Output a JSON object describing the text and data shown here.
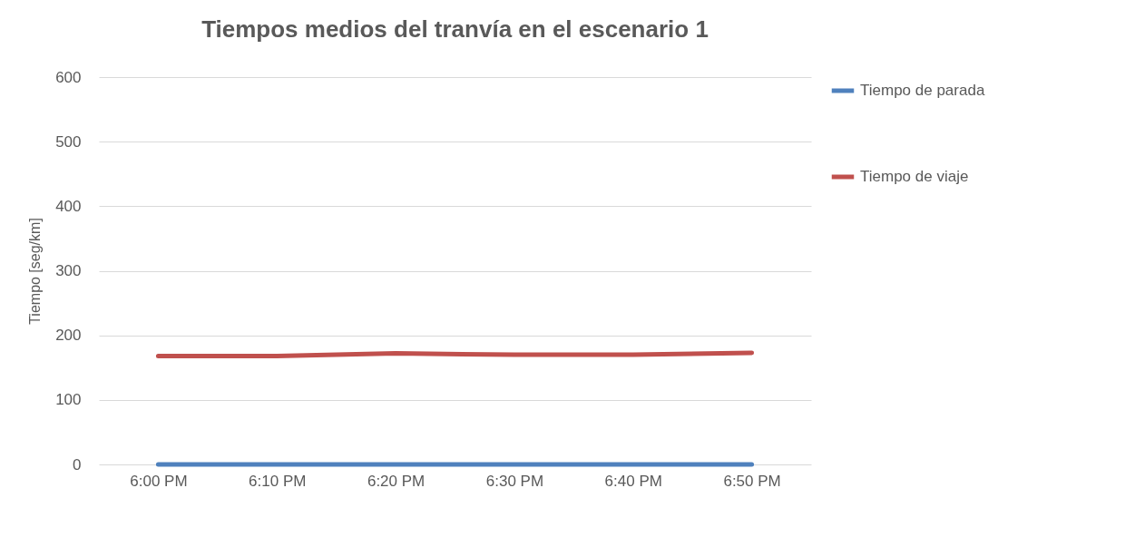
{
  "chart_data": {
    "type": "line",
    "title": "Tiempos medios del tranvía en el escenario 1",
    "ylabel": "Tiempo [seg/km]",
    "categories": [
      "6:00 PM",
      "6:10 PM",
      "6:20 PM",
      "6:30 PM",
      "6:40 PM",
      "6:50 PM"
    ],
    "series": [
      {
        "name": "Tiempo de parada",
        "color": "#4f81bd",
        "values": [
          0,
          0,
          0,
          0,
          0,
          0
        ]
      },
      {
        "name": "Tiempo de viaje",
        "color": "#c0504d",
        "values": [
          168,
          168,
          172,
          170,
          170,
          173
        ]
      }
    ],
    "ylim": [
      0,
      600
    ],
    "yticks": [
      0,
      100,
      200,
      300,
      400,
      500,
      600
    ],
    "grid": "y",
    "legend": "right",
    "marker": "none",
    "line_style": "solid"
  }
}
